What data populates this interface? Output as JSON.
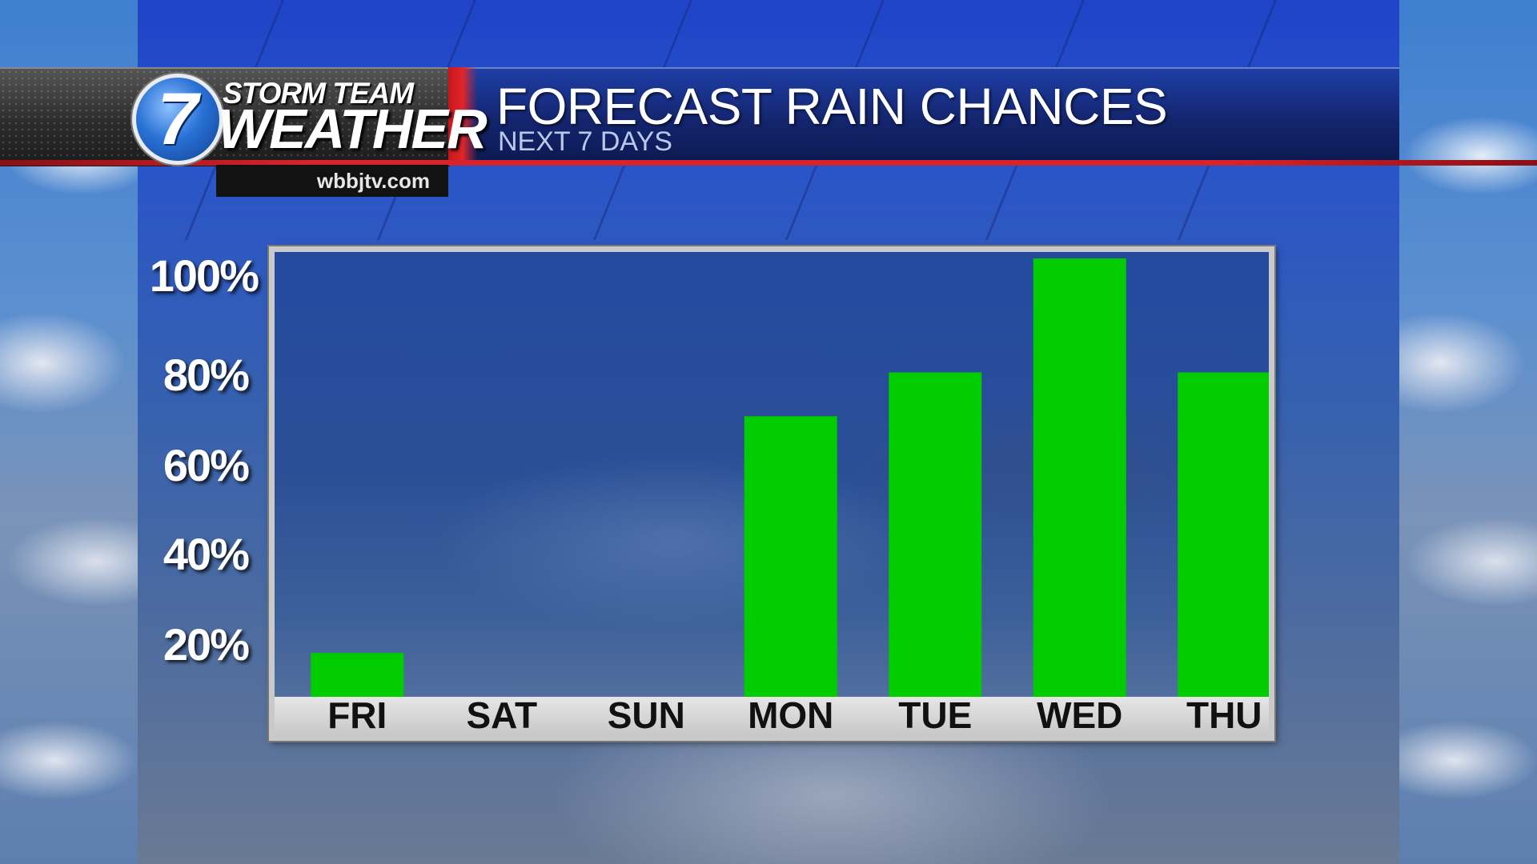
{
  "station": {
    "logo_number": "7",
    "brand_top": "STORM TEAM",
    "brand_bottom": "WEATHER",
    "url": "wbbjtv.com"
  },
  "header": {
    "title": "FORECAST RAIN CHANCES",
    "subtitle": "NEXT 7 DAYS"
  },
  "colors": {
    "bar": "#00cc00",
    "accent_red": "#d8232a",
    "header_blue": "#14256e"
  },
  "chart_data": {
    "type": "bar",
    "title": "FORECAST RAIN CHANCES",
    "subtitle": "NEXT 7 DAYS",
    "categories": [
      "FRI",
      "SAT",
      "SUN",
      "MON",
      "TUE",
      "WED",
      "THU"
    ],
    "values": [
      10,
      0,
      0,
      64,
      74,
      100,
      74
    ],
    "ylim": [
      0,
      100
    ],
    "yticks": [
      20,
      40,
      60,
      80,
      100
    ],
    "ytick_labels": [
      "20%",
      "40%",
      "60%",
      "80%",
      "100%"
    ],
    "grid": false,
    "legend": "none"
  }
}
